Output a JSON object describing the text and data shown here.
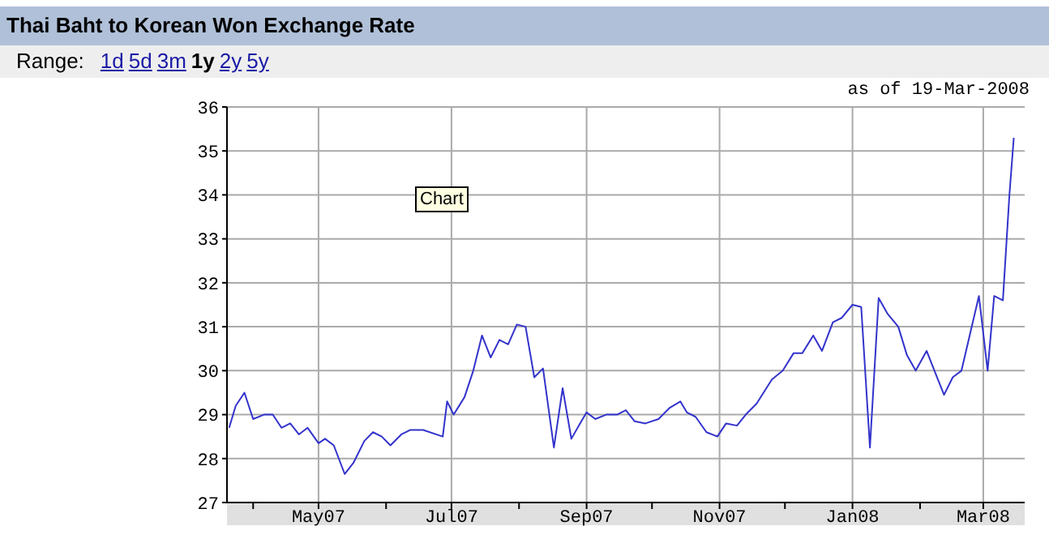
{
  "chart_data": {
    "type": "line",
    "title": "Thai Baht to Korean Won Exchange Rate",
    "annotations": [
      "Range:",
      "1d",
      "5d",
      "3m",
      "1y",
      "2y",
      "5y",
      "as of 19-Mar-2008",
      "Chart"
    ],
    "x": [
      "2007-03-21",
      "2007-03-24",
      "2007-03-28",
      "2007-04-01",
      "2007-04-06",
      "2007-04-10",
      "2007-04-14",
      "2007-04-18",
      "2007-04-22",
      "2007-04-26",
      "2007-05-01",
      "2007-05-04",
      "2007-05-08",
      "2007-05-13",
      "2007-05-17",
      "2007-05-22",
      "2007-05-26",
      "2007-05-30",
      "2007-06-03",
      "2007-06-08",
      "2007-06-12",
      "2007-06-18",
      "2007-06-27",
      "2007-06-29",
      "2007-07-02",
      "2007-07-07",
      "2007-07-11",
      "2007-07-15",
      "2007-07-19",
      "2007-07-23",
      "2007-07-27",
      "2007-07-31",
      "2007-08-04",
      "2007-08-08",
      "2007-08-12",
      "2007-08-17",
      "2007-08-21",
      "2007-08-25",
      "2007-08-29",
      "2007-09-01",
      "2007-09-05",
      "2007-09-10",
      "2007-09-15",
      "2007-09-19",
      "2007-09-23",
      "2007-09-28",
      "2007-10-04",
      "2007-10-09",
      "2007-10-14",
      "2007-10-17",
      "2007-10-21",
      "2007-10-26",
      "2007-10-31",
      "2007-11-04",
      "2007-11-09",
      "2007-11-13",
      "2007-11-18",
      "2007-11-25",
      "2007-11-30",
      "2007-12-05",
      "2007-12-09",
      "2007-12-14",
      "2007-12-18",
      "2007-12-23",
      "2007-12-27",
      "2008-01-01",
      "2008-01-05",
      "2008-01-09",
      "2008-01-13",
      "2008-01-17",
      "2008-01-22",
      "2008-01-26",
      "2008-01-30",
      "2008-02-04",
      "2008-02-08",
      "2008-02-12",
      "2008-02-16",
      "2008-02-20",
      "2008-02-28",
      "2008-03-03",
      "2008-03-06",
      "2008-03-10",
      "2008-03-13",
      "2008-03-15"
    ],
    "series": [
      {
        "color": "#3333cc",
        "values": [
          28.7,
          29.2,
          29.5,
          28.9,
          29.0,
          29.0,
          28.7,
          28.8,
          28.55,
          28.7,
          28.35,
          28.45,
          28.3,
          27.65,
          27.9,
          28.4,
          28.6,
          28.5,
          28.3,
          28.55,
          28.65,
          28.65,
          28.5,
          29.3,
          29.0,
          29.4,
          30.0,
          30.8,
          30.3,
          30.7,
          30.6,
          31.05,
          31.0,
          29.85,
          30.05,
          28.25,
          29.6,
          28.45,
          28.8,
          29.05,
          28.9,
          29.0,
          29.0,
          29.1,
          28.85,
          28.8,
          28.9,
          29.15,
          29.3,
          29.05,
          28.95,
          28.6,
          28.5,
          28.8,
          28.75,
          29.0,
          29.25,
          29.8,
          30.0,
          30.4,
          30.4,
          30.8,
          30.45,
          31.1,
          31.2,
          31.5,
          31.45,
          28.25,
          31.65,
          31.3,
          31.0,
          30.35,
          30.0,
          30.45,
          29.95,
          29.45,
          29.85,
          30.0,
          31.7,
          30.0,
          31.7,
          31.6,
          34.0,
          35.3
        ]
      }
    ],
    "xlim": [
      "2007-03-20",
      "2008-03-20"
    ],
    "xticks": [
      {
        "value": "2007-04-01",
        "label": null
      },
      {
        "value": "2007-05-01",
        "label": "May07"
      },
      {
        "value": "2007-06-01",
        "label": null
      },
      {
        "value": "2007-07-01",
        "label": "Jul07"
      },
      {
        "value": "2007-08-01",
        "label": null
      },
      {
        "value": "2007-09-01",
        "label": "Sep07"
      },
      {
        "value": "2007-10-01",
        "label": null
      },
      {
        "value": "2007-11-01",
        "label": "Nov07"
      },
      {
        "value": "2007-12-01",
        "label": null
      },
      {
        "value": "2008-01-01",
        "label": "Jan08"
      },
      {
        "value": "2008-02-01",
        "label": null
      },
      {
        "value": "2008-03-01",
        "label": "Mar08"
      }
    ],
    "ylim": [
      27,
      36
    ],
    "yticks": [
      27,
      28,
      29,
      30,
      31,
      32,
      33,
      34,
      35,
      36
    ],
    "grid": true,
    "legend": false,
    "marker": "none",
    "line_style": "solid"
  }
}
